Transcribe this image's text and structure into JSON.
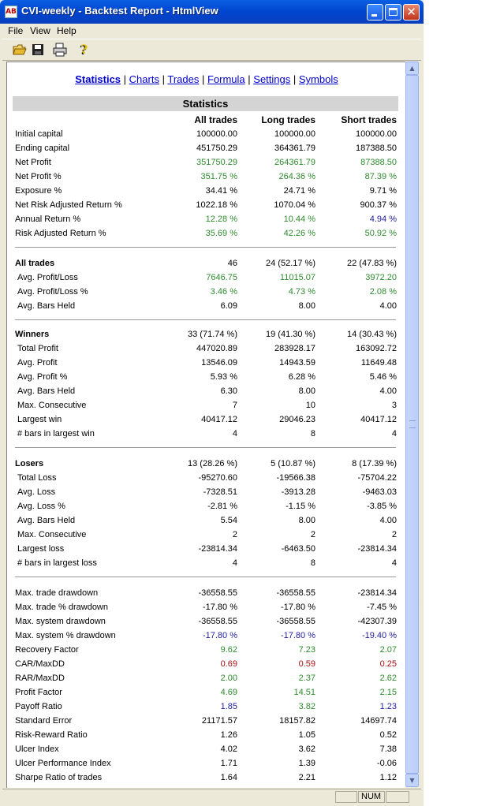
{
  "window": {
    "title": "CVI-weekly - Backtest Report - HtmlView",
    "app_icon_label": "AB"
  },
  "menu": [
    "File",
    "View",
    "Help"
  ],
  "toolbar": [
    "open-icon",
    "save-icon",
    "print-icon",
    "help-icon"
  ],
  "nav": {
    "links": [
      "Statistics",
      "Charts",
      "Trades",
      "Formula",
      "Settings",
      "Symbols"
    ],
    "active": "Statistics"
  },
  "section_title": "Statistics",
  "columns": [
    "All trades",
    "Long trades",
    "Short trades"
  ],
  "colors": {
    "positive": "#2e8b2e",
    "ratio": "#1f1f9f",
    "negative": "#aa1111"
  },
  "groups": [
    {
      "rows": [
        {
          "label": "Initial capital",
          "all": "100000.00",
          "long": "100000.00",
          "short": "100000.00"
        },
        {
          "label": "Ending capital",
          "all": "451750.29",
          "long": "364361.79",
          "short": "187388.50"
        },
        {
          "label": "Net Profit",
          "all": "351750.29",
          "long": "264361.79",
          "short": "87388.50",
          "color": "green"
        },
        {
          "label": "Net Profit %",
          "all": "351.75 %",
          "long": "264.36 %",
          "short": "87.39 %",
          "color": "green"
        },
        {
          "label": "Exposure %",
          "all": "34.41 %",
          "long": "24.71 %",
          "short": "9.71 %"
        },
        {
          "label": "Net Risk Adjusted Return %",
          "all": "1022.18 %",
          "long": "1070.04 %",
          "short": "900.37 %"
        },
        {
          "label": "Annual Return %",
          "all": "12.28 %",
          "long": "10.44 %",
          "short": "4.94 %",
          "color": "green",
          "short_color": "blue"
        },
        {
          "label": "Risk Adjusted Return %",
          "all": "35.69 %",
          "long": "42.26 %",
          "short": "50.92 %",
          "color": "green"
        }
      ]
    },
    {
      "rows": [
        {
          "label": "All trades",
          "all": "46",
          "long": "24 (52.17 %)",
          "short": "22 (47.83 %)",
          "bold": true
        },
        {
          "label": "Avg. Profit/Loss",
          "all": "7646.75",
          "long": "11015.07",
          "short": "3972.20",
          "color": "green",
          "indent": true
        },
        {
          "label": "Avg. Profit/Loss %",
          "all": "3.46 %",
          "long": "4.73 %",
          "short": "2.08 %",
          "color": "green",
          "indent": true
        },
        {
          "label": "Avg. Bars Held",
          "all": "6.09",
          "long": "8.00",
          "short": "4.00",
          "indent": true
        }
      ]
    },
    {
      "rows": [
        {
          "label": "Winners",
          "all": "33 (71.74 %)",
          "long": "19 (41.30 %)",
          "short": "14 (30.43 %)",
          "bold": true
        },
        {
          "label": "Total Profit",
          "all": "447020.89",
          "long": "283928.17",
          "short": "163092.72",
          "indent": true
        },
        {
          "label": "Avg. Profit",
          "all": "13546.09",
          "long": "14943.59",
          "short": "11649.48",
          "indent": true
        },
        {
          "label": "Avg. Profit %",
          "all": "5.93 %",
          "long": "6.28 %",
          "short": "5.46 %",
          "indent": true
        },
        {
          "label": "Avg. Bars Held",
          "all": "6.30",
          "long": "8.00",
          "short": "4.00",
          "indent": true
        },
        {
          "label": "Max. Consecutive",
          "all": "7",
          "long": "10",
          "short": "3",
          "indent": true
        },
        {
          "label": "Largest win",
          "all": "40417.12",
          "long": "29046.23",
          "short": "40417.12",
          "indent": true
        },
        {
          "label": "# bars in largest win",
          "all": "4",
          "long": "8",
          "short": "4",
          "indent": true
        }
      ]
    },
    {
      "rows": [
        {
          "label": "Losers",
          "all": "13 (28.26 %)",
          "long": "5 (10.87 %)",
          "short": "8 (17.39 %)",
          "bold": true
        },
        {
          "label": "Total Loss",
          "all": "-95270.60",
          "long": "-19566.38",
          "short": "-75704.22",
          "indent": true
        },
        {
          "label": "Avg. Loss",
          "all": "-7328.51",
          "long": "-3913.28",
          "short": "-9463.03",
          "indent": true
        },
        {
          "label": "Avg. Loss %",
          "all": "-2.81 %",
          "long": "-1.15 %",
          "short": "-3.85 %",
          "indent": true
        },
        {
          "label": "Avg. Bars Held",
          "all": "5.54",
          "long": "8.00",
          "short": "4.00",
          "indent": true
        },
        {
          "label": "Max. Consecutive",
          "all": "2",
          "long": "2",
          "short": "2",
          "indent": true
        },
        {
          "label": "Largest loss",
          "all": "-23814.34",
          "long": "-6463.50",
          "short": "-23814.34",
          "indent": true
        },
        {
          "label": "# bars in largest loss",
          "all": "4",
          "long": "8",
          "short": "4",
          "indent": true
        }
      ]
    },
    {
      "rows": [
        {
          "label": "Max. trade drawdown",
          "all": "-36558.55",
          "long": "-36558.55",
          "short": "-23814.34"
        },
        {
          "label": "Max. trade % drawdown",
          "all": "-17.80 %",
          "long": "-17.80 %",
          "short": "-7.45 %"
        },
        {
          "label": "Max. system drawdown",
          "all": "-36558.55",
          "long": "-36558.55",
          "short": "-42307.39"
        },
        {
          "label": "Max. system % drawdown",
          "all": "-17.80 %",
          "long": "-17.80 %",
          "short": "-19.40 %",
          "color": "blue"
        },
        {
          "label": "Recovery Factor",
          "all": "9.62",
          "long": "7.23",
          "short": "2.07",
          "color": "green"
        },
        {
          "label": "CAR/MaxDD",
          "all": "0.69",
          "long": "0.59",
          "short": "0.25",
          "color": "red"
        },
        {
          "label": "RAR/MaxDD",
          "all": "2.00",
          "long": "2.37",
          "short": "2.62",
          "color": "green"
        },
        {
          "label": "Profit Factor",
          "all": "4.69",
          "long": "14.51",
          "short": "2.15",
          "color": "green"
        },
        {
          "label": "Payoff Ratio",
          "all": "1.85",
          "long": "3.82",
          "short": "1.23",
          "color": "blue",
          "long_color": "green"
        },
        {
          "label": "Standard Error",
          "all": "21171.57",
          "long": "18157.82",
          "short": "14697.74"
        },
        {
          "label": "Risk-Reward Ratio",
          "all": "1.26",
          "long": "1.05",
          "short": "0.52"
        },
        {
          "label": "Ulcer Index",
          "all": "4.02",
          "long": "3.62",
          "short": "7.38"
        },
        {
          "label": "Ulcer Performance Index",
          "all": "1.71",
          "long": "1.39",
          "short": "-0.06"
        },
        {
          "label": "Sharpe Ratio of trades",
          "all": "1.64",
          "long": "2.21",
          "short": "1.12"
        }
      ]
    }
  ],
  "status": {
    "panes": [
      "",
      "NUM",
      ""
    ]
  }
}
